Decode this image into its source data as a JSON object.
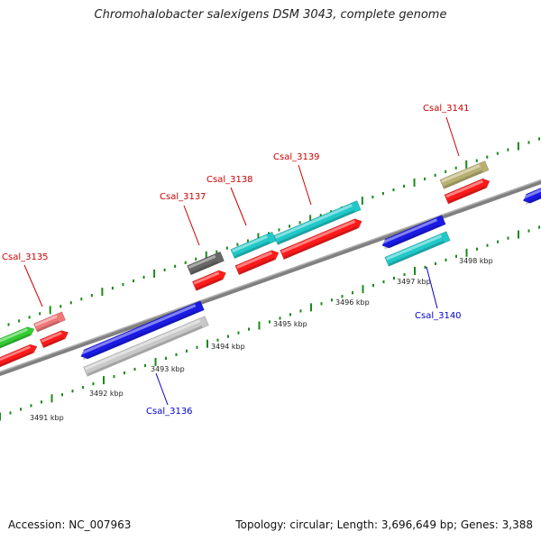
{
  "title": "Chromohalobacter salexigens DSM 3043, complete genome",
  "footer": {
    "accession": "Accession: NC_007963",
    "topology": "Topology: circular; Length: 3,696,649 bp; Genes: 3,388"
  },
  "colors": {
    "backbone": "#808080",
    "tick": "#1a8a1a",
    "label_forward": "#cc0000",
    "label_reverse": "#0000cc",
    "red": "#ff1a1a",
    "blue": "#1a1ae6",
    "cyan": "#20c8c8",
    "gray": "#666666",
    "light_gray": "#c8c8c8",
    "green": "#33cc33",
    "pink": "#f07878",
    "olive": "#b8b070"
  },
  "tick_labels": [
    "3491 kbp",
    "3492 kbp",
    "3493 kbp",
    "3494 kbp",
    "3495 kbp",
    "3496 kbp",
    "3497 kbp",
    "3498 kbp"
  ],
  "gene_labels": [
    {
      "text": "Csal_3135",
      "strand": "forward"
    },
    {
      "text": "Csal_3136",
      "strand": "reverse"
    },
    {
      "text": "Csal_3137",
      "strand": "forward"
    },
    {
      "text": "Csal_3138",
      "strand": "forward"
    },
    {
      "text": "Csal_3139",
      "strand": "forward"
    },
    {
      "text": "Csal_3140",
      "strand": "reverse"
    },
    {
      "text": "Csal_3141",
      "strand": "forward"
    }
  ],
  "features": [
    {
      "name": "cds-cog-left",
      "color": "green"
    },
    {
      "name": "cds-red-left",
      "color": "red"
    },
    {
      "name": "csal-3135-cog",
      "color": "pink"
    },
    {
      "name": "csal-3135-cds",
      "color": "red"
    },
    {
      "name": "csal-3136-cog",
      "color": "blue"
    },
    {
      "name": "csal-3136-cds",
      "color": "light_gray"
    },
    {
      "name": "csal-3137-cog",
      "color": "gray"
    },
    {
      "name": "csal-3137-cds",
      "color": "red"
    },
    {
      "name": "csal-3138-cog",
      "color": "cyan"
    },
    {
      "name": "csal-3138-cds",
      "color": "red"
    },
    {
      "name": "csal-3139-cog",
      "color": "cyan"
    },
    {
      "name": "csal-3139-cds",
      "color": "red"
    },
    {
      "name": "csal-3140-cog",
      "color": "blue"
    },
    {
      "name": "csal-3140-cds",
      "color": "cyan"
    },
    {
      "name": "csal-3141-cog",
      "color": "olive"
    },
    {
      "name": "csal-3141-cds",
      "color": "red"
    },
    {
      "name": "cds-blue-right",
      "color": "blue"
    }
  ]
}
